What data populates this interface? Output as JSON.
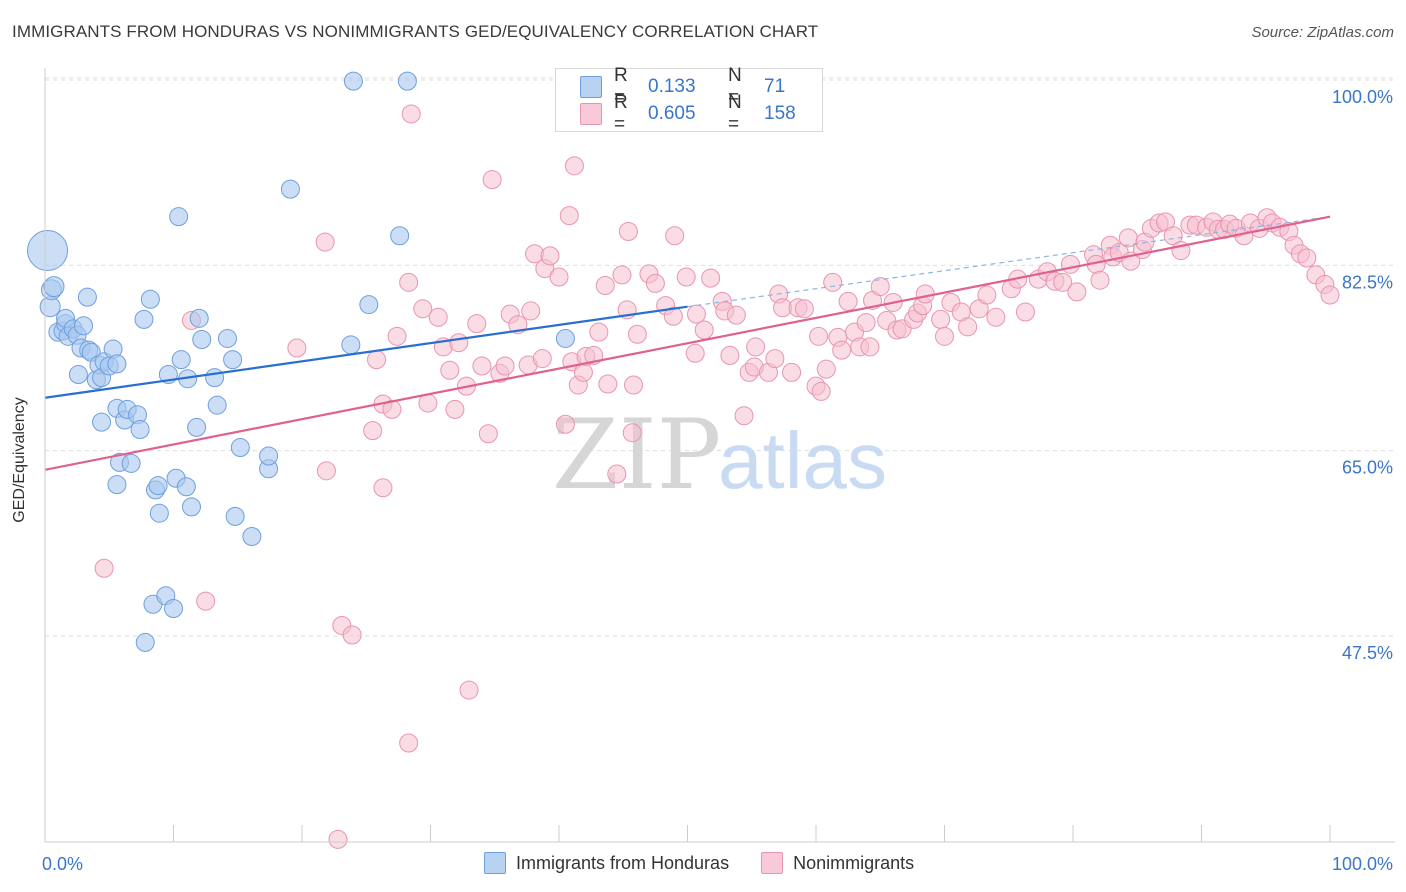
{
  "header": {
    "title": "IMMIGRANTS FROM HONDURAS VS NONIMMIGRANTS GED/EQUIVALENCY CORRELATION CHART",
    "source": "Source: ZipAtlas.com"
  },
  "watermark": {
    "zip": "ZIP",
    "atlas": "atlas"
  },
  "legend_top": {
    "rows": [
      {
        "r_label": "R =",
        "r_value": "0.133",
        "n_label": "N =",
        "n_value": "71"
      },
      {
        "r_label": "R =",
        "r_value": "0.605",
        "n_label": "N =",
        "n_value": "158"
      }
    ]
  },
  "legend_bottom": {
    "items": [
      {
        "label": "Immigrants from Honduras"
      },
      {
        "label": "Nonimmigrants"
      }
    ]
  },
  "colors": {
    "blue_fill": "#a9c8f0",
    "blue_stroke": "#6f9fdc",
    "blue_line": "#2a6fd0",
    "pink_fill": "#f6bfd0",
    "pink_stroke": "#e895b0",
    "pink_line": "#e0608e",
    "tick_label": "#3a76c8",
    "grid": "#dddddd"
  },
  "chart_data": {
    "type": "scatter",
    "xlabel": "",
    "ylabel": "GED/Equivalency",
    "xlim": [
      0,
      100
    ],
    "ylim": [
      29,
      102
    ],
    "x_tick_labels": [
      {
        "value": 0,
        "label": "0.0%"
      },
      {
        "value": 100,
        "label": "100.0%"
      }
    ],
    "y_tick_labels": [
      {
        "value": 100,
        "label": "100.0%"
      },
      {
        "value": 82.5,
        "label": "82.5%"
      },
      {
        "value": 65,
        "label": "65.0%"
      },
      {
        "value": 47.5,
        "label": "47.5%"
      }
    ],
    "grid": true,
    "series": [
      {
        "name": "Immigrants from Honduras",
        "color": "#a9c8f0",
        "trend": {
          "x": [
            0,
            50
          ],
          "y": [
            71.6,
            80.2
          ],
          "dashed_to": [
            100,
            88.7
          ]
        },
        "points": [
          [
            0.2,
            85.5,
            20
          ],
          [
            0.4,
            80.2,
            10
          ],
          [
            0.5,
            81.8,
            10
          ],
          [
            0.7,
            82.1,
            10
          ],
          [
            1.0,
            77.8,
            9
          ],
          [
            1.4,
            77.9,
            9
          ],
          [
            1.6,
            78.6,
            9
          ],
          [
            1.6,
            79.1,
            9
          ],
          [
            1.8,
            77.4,
            9
          ],
          [
            2.2,
            78.1,
            9
          ],
          [
            2.5,
            77.5,
            9
          ],
          [
            2.6,
            73.8,
            9
          ],
          [
            2.8,
            76.3,
            9
          ],
          [
            3.0,
            78.4,
            9
          ],
          [
            3.3,
            81.1,
            9
          ],
          [
            3.4,
            76.1,
            9
          ],
          [
            3.6,
            75.9,
            9
          ],
          [
            4.0,
            73.3,
            9
          ],
          [
            4.2,
            74.7,
            9
          ],
          [
            4.4,
            73.5,
            9
          ],
          [
            4.4,
            69.3,
            9
          ],
          [
            4.6,
            75.0,
            9
          ],
          [
            5.0,
            74.6,
            9
          ],
          [
            5.3,
            76.2,
            9
          ],
          [
            5.6,
            74.8,
            9
          ],
          [
            5.6,
            70.6,
            9
          ],
          [
            5.8,
            65.5,
            9
          ],
          [
            5.6,
            63.4,
            9
          ],
          [
            6.2,
            69.5,
            9
          ],
          [
            6.4,
            70.5,
            9
          ],
          [
            6.7,
            65.4,
            9
          ],
          [
            7.2,
            70.0,
            9
          ],
          [
            7.4,
            68.6,
            9
          ],
          [
            7.7,
            79.0,
            9
          ],
          [
            7.8,
            48.5,
            9
          ],
          [
            8.2,
            80.9,
            9
          ],
          [
            8.4,
            52.1,
            9
          ],
          [
            8.6,
            62.9,
            9
          ],
          [
            8.8,
            63.3,
            9
          ],
          [
            8.9,
            60.7,
            9
          ],
          [
            9.4,
            52.9,
            9
          ],
          [
            9.6,
            73.8,
            9
          ],
          [
            10.0,
            51.7,
            9
          ],
          [
            10.2,
            64.0,
            9
          ],
          [
            10.4,
            88.7,
            9
          ],
          [
            10.6,
            75.2,
            9
          ],
          [
            11.0,
            63.2,
            9
          ],
          [
            11.1,
            73.4,
            9
          ],
          [
            11.4,
            61.3,
            9
          ],
          [
            11.8,
            68.8,
            9
          ],
          [
            12.0,
            79.1,
            9
          ],
          [
            12.2,
            77.1,
            9
          ],
          [
            13.2,
            73.5,
            9
          ],
          [
            13.4,
            70.9,
            9
          ],
          [
            14.2,
            77.2,
            9
          ],
          [
            14.6,
            75.2,
            9
          ],
          [
            14.8,
            60.4,
            9
          ],
          [
            15.2,
            66.9,
            9
          ],
          [
            16.1,
            58.5,
            9
          ],
          [
            17.4,
            64.9,
            9
          ],
          [
            17.4,
            66.1,
            9
          ],
          [
            19.1,
            91.3,
            9
          ],
          [
            23.8,
            76.6,
            9
          ],
          [
            24.0,
            101.5,
            9
          ],
          [
            25.2,
            80.4,
            9
          ],
          [
            27.6,
            86.9,
            9
          ],
          [
            28.2,
            101.5,
            9
          ],
          [
            40.5,
            77.2,
            9
          ]
        ]
      },
      {
        "name": "Nonimmigrants",
        "color": "#f6bfd0",
        "trend": {
          "x": [
            0,
            100
          ],
          "y": [
            64.8,
            88.7
          ]
        },
        "points": [
          [
            4.6,
            55.5
          ],
          [
            11.4,
            78.9
          ],
          [
            12.5,
            52.4
          ],
          [
            19.6,
            76.3
          ],
          [
            21.8,
            86.3
          ],
          [
            21.9,
            64.7
          ],
          [
            22.8,
            29.9
          ],
          [
            23.1,
            50.1
          ],
          [
            23.9,
            49.2
          ],
          [
            25.5,
            68.5
          ],
          [
            25.8,
            75.2
          ],
          [
            26.3,
            71.0
          ],
          [
            26.3,
            63.1
          ],
          [
            27.0,
            70.5
          ],
          [
            27.4,
            77.4
          ],
          [
            28.3,
            82.5
          ],
          [
            28.3,
            39.0
          ],
          [
            28.5,
            98.4
          ],
          [
            29.4,
            80.0
          ],
          [
            29.8,
            71.1
          ],
          [
            30.6,
            79.2
          ],
          [
            31.0,
            76.4
          ],
          [
            31.5,
            74.2
          ],
          [
            31.9,
            70.5
          ],
          [
            32.2,
            76.8
          ],
          [
            32.8,
            72.7
          ],
          [
            33.0,
            44.0
          ],
          [
            33.6,
            78.6
          ],
          [
            34.0,
            74.6
          ],
          [
            34.5,
            68.2
          ],
          [
            34.8,
            92.2
          ],
          [
            35.4,
            73.9
          ],
          [
            35.8,
            74.6
          ],
          [
            36.2,
            79.5
          ],
          [
            36.8,
            78.5
          ],
          [
            37.6,
            74.7
          ],
          [
            37.8,
            79.8
          ],
          [
            38.1,
            85.2
          ],
          [
            38.7,
            75.3
          ],
          [
            38.9,
            83.8
          ],
          [
            39.3,
            85.0
          ],
          [
            40.0,
            83.0
          ],
          [
            40.5,
            69.1
          ],
          [
            40.8,
            88.8
          ],
          [
            41.0,
            75.0
          ],
          [
            41.2,
            93.5
          ],
          [
            41.5,
            72.8
          ],
          [
            41.9,
            74.0
          ],
          [
            42.1,
            75.5
          ],
          [
            42.7,
            75.6
          ],
          [
            43.1,
            77.8
          ],
          [
            43.6,
            82.2
          ],
          [
            43.8,
            72.9
          ],
          [
            44.5,
            64.4
          ],
          [
            44.9,
            83.2
          ],
          [
            45.3,
            79.9
          ],
          [
            45.4,
            87.3
          ],
          [
            45.7,
            68.3
          ],
          [
            45.8,
            72.8
          ],
          [
            46.1,
            77.6
          ],
          [
            47.0,
            83.3
          ],
          [
            47.5,
            82.4
          ],
          [
            48.3,
            80.3
          ],
          [
            48.9,
            79.3
          ],
          [
            49.0,
            86.9
          ],
          [
            49.9,
            83.0
          ],
          [
            50.6,
            75.8
          ],
          [
            50.7,
            79.5
          ],
          [
            51.3,
            78.0
          ],
          [
            51.8,
            82.9
          ],
          [
            52.7,
            80.7
          ],
          [
            52.9,
            79.8
          ],
          [
            53.3,
            75.6
          ],
          [
            53.8,
            79.4
          ],
          [
            54.4,
            69.9
          ],
          [
            54.8,
            74.0
          ],
          [
            55.2,
            74.5
          ],
          [
            55.3,
            76.4
          ],
          [
            56.3,
            74.0
          ],
          [
            56.8,
            75.3
          ],
          [
            57.1,
            81.4
          ],
          [
            57.4,
            80.1
          ],
          [
            58.1,
            74.0
          ],
          [
            58.6,
            80.1
          ],
          [
            59.1,
            80.0
          ],
          [
            60.0,
            72.7
          ],
          [
            60.2,
            77.4
          ],
          [
            60.4,
            72.2
          ],
          [
            60.8,
            74.3
          ],
          [
            61.3,
            82.5
          ],
          [
            61.7,
            77.3
          ],
          [
            62.0,
            76.1
          ],
          [
            62.5,
            80.7
          ],
          [
            63.0,
            77.8
          ],
          [
            63.4,
            76.4
          ],
          [
            63.9,
            78.7
          ],
          [
            64.2,
            76.4
          ],
          [
            64.4,
            80.8
          ],
          [
            65.0,
            82.1
          ],
          [
            65.5,
            78.9
          ],
          [
            66.0,
            80.6
          ],
          [
            66.3,
            78.0
          ],
          [
            66.7,
            78.1
          ],
          [
            67.6,
            79.0
          ],
          [
            67.9,
            79.6
          ],
          [
            68.3,
            80.3
          ],
          [
            68.5,
            81.4
          ],
          [
            69.7,
            79.0
          ],
          [
            70.0,
            77.4
          ],
          [
            70.5,
            80.6
          ],
          [
            71.3,
            79.7
          ],
          [
            71.8,
            78.3
          ],
          [
            72.7,
            80.0
          ],
          [
            73.3,
            81.3
          ],
          [
            74.0,
            79.2
          ],
          [
            75.2,
            81.9
          ],
          [
            75.7,
            82.8
          ],
          [
            76.3,
            79.7
          ],
          [
            77.3,
            82.8
          ],
          [
            78.0,
            83.5
          ],
          [
            78.6,
            82.6
          ],
          [
            79.2,
            82.5
          ],
          [
            79.8,
            84.2
          ],
          [
            80.3,
            81.6
          ],
          [
            81.6,
            85.1
          ],
          [
            81.8,
            84.2
          ],
          [
            82.1,
            82.7
          ],
          [
            82.9,
            86.0
          ],
          [
            83.1,
            84.9
          ],
          [
            83.6,
            85.3
          ],
          [
            84.3,
            86.7
          ],
          [
            84.5,
            84.5
          ],
          [
            85.4,
            85.6
          ],
          [
            85.6,
            86.3
          ],
          [
            86.1,
            87.6
          ],
          [
            86.7,
            88.1
          ],
          [
            87.2,
            88.2
          ],
          [
            87.8,
            86.9
          ],
          [
            88.4,
            85.5
          ],
          [
            89.1,
            87.9
          ],
          [
            89.6,
            87.9
          ],
          [
            90.4,
            87.7
          ],
          [
            90.9,
            88.2
          ],
          [
            91.3,
            87.5
          ],
          [
            91.8,
            87.5
          ],
          [
            92.2,
            88.0
          ],
          [
            92.7,
            87.6
          ],
          [
            93.3,
            86.9
          ],
          [
            93.8,
            88.1
          ],
          [
            94.5,
            87.6
          ],
          [
            95.1,
            88.6
          ],
          [
            95.5,
            88.1
          ],
          [
            96.1,
            87.7
          ],
          [
            96.8,
            87.3
          ],
          [
            97.2,
            86.0
          ],
          [
            97.7,
            85.2
          ],
          [
            98.2,
            84.8
          ],
          [
            98.9,
            83.2
          ],
          [
            99.6,
            82.3
          ],
          [
            100.0,
            81.3
          ]
        ]
      }
    ]
  }
}
